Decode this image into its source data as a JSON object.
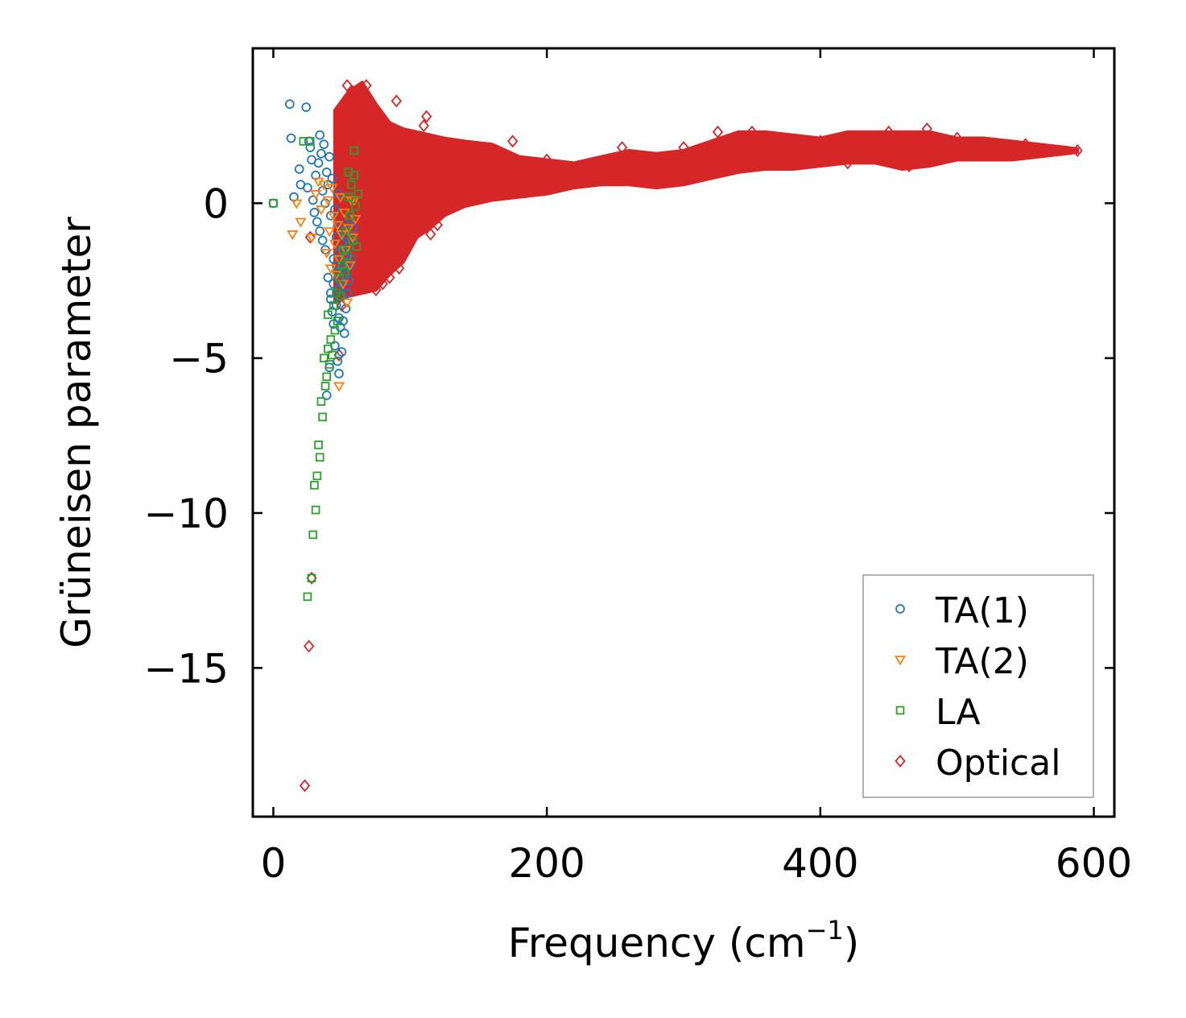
{
  "chart_data": {
    "type": "scatter",
    "xlabel": "Frequency (cm",
    "xlabel_sup": "−1",
    "xlabel_close": ")",
    "ylabel": "Grüneisen parameter",
    "xlim": [
      -15,
      615
    ],
    "ylim": [
      -19.8,
      5.0
    ],
    "x_ticks": [
      0,
      200,
      400,
      600
    ],
    "x_tick_labels": [
      "0",
      "200",
      "400",
      "600"
    ],
    "y_ticks": [
      0,
      -5,
      -10,
      -15
    ],
    "y_tick_labels": [
      "0",
      "−5",
      "−10",
      "−15"
    ],
    "grid": false,
    "legend_position": "bottom-right",
    "series": [
      {
        "name": "TA(1)",
        "marker": "circle",
        "color": "#1f77b4",
        "points": [
          [
            0,
            0
          ],
          [
            12,
            3.2
          ],
          [
            13,
            2.1
          ],
          [
            15,
            0.2
          ],
          [
            19,
            1.1
          ],
          [
            20,
            0.6
          ],
          [
            24,
            3.1
          ],
          [
            25,
            0.5
          ],
          [
            26,
            2.0
          ],
          [
            27,
            1.8
          ],
          [
            28,
            1.4
          ],
          [
            29,
            0.1
          ],
          [
            30,
            -0.3
          ],
          [
            31,
            0.9
          ],
          [
            32,
            -0.6
          ],
          [
            33,
            1.3
          ],
          [
            34,
            2.2
          ],
          [
            34,
            -0.9
          ],
          [
            35,
            1.6
          ],
          [
            36,
            0.4
          ],
          [
            36,
            -1.2
          ],
          [
            37,
            1.9
          ],
          [
            38,
            0.0
          ],
          [
            38,
            -1.5
          ],
          [
            39,
            1.0
          ],
          [
            39,
            -6.2
          ],
          [
            40,
            0.6
          ],
          [
            40,
            -2.4
          ],
          [
            41,
            1.5
          ],
          [
            41,
            -5.3
          ],
          [
            42,
            -0.4
          ],
          [
            42,
            -2.9
          ],
          [
            42,
            -3.1
          ],
          [
            43,
            0.8
          ],
          [
            43,
            -3.5
          ],
          [
            44,
            -1.8
          ],
          [
            44,
            -2.6
          ],
          [
            44,
            -3.9
          ],
          [
            45,
            -0.2
          ],
          [
            45,
            -4.6
          ],
          [
            46,
            -1.1
          ],
          [
            46,
            -2.0
          ],
          [
            46,
            -3.3
          ],
          [
            47,
            0.3
          ],
          [
            47,
            -2.2
          ],
          [
            47,
            -5.1
          ],
          [
            48,
            -1.6
          ],
          [
            48,
            -2.8
          ],
          [
            48,
            -3.7
          ],
          [
            48,
            -5.5
          ],
          [
            49,
            -0.7
          ],
          [
            49,
            -2.5
          ],
          [
            49,
            -4.0
          ],
          [
            50,
            -1.3
          ],
          [
            50,
            -3.0
          ],
          [
            50,
            -4.8
          ],
          [
            51,
            -0.9
          ],
          [
            51,
            -2.1
          ],
          [
            51,
            -3.8
          ],
          [
            52,
            -1.7
          ],
          [
            52,
            -2.7
          ],
          [
            52,
            -4.2
          ],
          [
            53,
            -1.0
          ],
          [
            53,
            -2.3
          ],
          [
            53,
            -3.4
          ],
          [
            54,
            -1.9
          ],
          [
            54,
            -2.9
          ],
          [
            55,
            -1.4
          ],
          [
            55,
            -2.5
          ],
          [
            56,
            -0.5
          ],
          [
            56,
            -2.0
          ],
          [
            57,
            -1.2
          ],
          [
            57,
            -1.8
          ],
          [
            58,
            -0.8
          ]
        ]
      },
      {
        "name": "TA(2)",
        "marker": "triangle-down",
        "color": "#ff7f0e",
        "points": [
          [
            14,
            -1.0
          ],
          [
            17,
            0.0
          ],
          [
            20,
            -0.6
          ],
          [
            28,
            -1.1
          ],
          [
            31,
            0.3
          ],
          [
            33,
            0.7
          ],
          [
            35,
            -0.2
          ],
          [
            37,
            0.6
          ],
          [
            39,
            -1.6
          ],
          [
            40,
            0.1
          ],
          [
            41,
            -0.9
          ],
          [
            42,
            -2.1
          ],
          [
            43,
            0.5
          ],
          [
            44,
            -0.4
          ],
          [
            45,
            -1.3
          ],
          [
            46,
            -2.3
          ],
          [
            47,
            -0.7
          ],
          [
            48,
            -5.9
          ],
          [
            48,
            -1.8
          ],
          [
            49,
            0.2
          ],
          [
            50,
            -1.0
          ],
          [
            51,
            -2.6
          ],
          [
            52,
            -0.3
          ],
          [
            53,
            -1.5
          ],
          [
            54,
            -3.2
          ],
          [
            55,
            -0.8
          ],
          [
            56,
            -2.0
          ],
          [
            57,
            0.1
          ],
          [
            58,
            -1.1
          ],
          [
            59,
            0.1
          ],
          [
            60,
            -0.5
          ]
        ]
      },
      {
        "name": "LA",
        "marker": "square",
        "color": "#2ca02c",
        "points": [
          [
            0,
            0
          ],
          [
            22,
            2.0
          ],
          [
            25,
            -12.7
          ],
          [
            27,
            2.0
          ],
          [
            28,
            -12.1
          ],
          [
            29,
            -10.7
          ],
          [
            30,
            -9.1
          ],
          [
            31,
            -9.9
          ],
          [
            32,
            -8.8
          ],
          [
            33,
            -7.8
          ],
          [
            34,
            -8.2
          ],
          [
            35,
            -6.4
          ],
          [
            36,
            -6.9
          ],
          [
            37,
            -5.0
          ],
          [
            38,
            -5.9
          ],
          [
            39,
            -5.6
          ],
          [
            40,
            -4.7
          ],
          [
            40,
            -3.6
          ],
          [
            41,
            -5.2
          ],
          [
            42,
            -4.4
          ],
          [
            43,
            -4.9
          ],
          [
            44,
            -3.3
          ],
          [
            45,
            -4.1
          ],
          [
            46,
            -2.9
          ],
          [
            47,
            -3.8
          ],
          [
            48,
            -2.4
          ],
          [
            49,
            -3.0
          ],
          [
            50,
            -2.0
          ],
          [
            51,
            -1.5
          ],
          [
            52,
            -2.2
          ],
          [
            53,
            -0.9
          ],
          [
            54,
            -1.7
          ],
          [
            55,
            0.2
          ],
          [
            55,
            1.0
          ],
          [
            56,
            -0.4
          ],
          [
            57,
            0.6
          ],
          [
            58,
            -1.2
          ],
          [
            59,
            1.7
          ],
          [
            59,
            0.9
          ],
          [
            60,
            -0.1
          ],
          [
            61,
            -1.4
          ],
          [
            62,
            0.3
          ]
        ]
      },
      {
        "name": "Optical",
        "marker": "diamond",
        "color": "#d62728",
        "band": [
          [
            45,
            3.0,
            -3.2
          ],
          [
            55,
            3.6,
            -3.0
          ],
          [
            65,
            3.9,
            -2.9
          ],
          [
            75,
            3.2,
            -2.8
          ],
          [
            85,
            2.6,
            -2.3
          ],
          [
            95,
            2.4,
            -1.9
          ],
          [
            105,
            2.3,
            -1.1
          ],
          [
            115,
            2.2,
            -0.8
          ],
          [
            125,
            2.1,
            -0.4
          ],
          [
            140,
            2.0,
            -0.1
          ],
          [
            160,
            1.9,
            0.1
          ],
          [
            180,
            1.5,
            0.2
          ],
          [
            200,
            1.4,
            0.3
          ],
          [
            220,
            1.3,
            0.5
          ],
          [
            240,
            1.5,
            0.6
          ],
          [
            260,
            1.7,
            0.6
          ],
          [
            280,
            1.6,
            0.5
          ],
          [
            300,
            1.7,
            0.6
          ],
          [
            320,
            2.0,
            0.8
          ],
          [
            340,
            2.3,
            1.0
          ],
          [
            360,
            2.3,
            1.1
          ],
          [
            380,
            2.2,
            1.1
          ],
          [
            400,
            2.1,
            1.2
          ],
          [
            420,
            2.3,
            1.3
          ],
          [
            440,
            2.3,
            1.3
          ],
          [
            460,
            2.3,
            1.1
          ],
          [
            480,
            2.3,
            1.2
          ],
          [
            500,
            2.1,
            1.4
          ],
          [
            520,
            2.1,
            1.4
          ],
          [
            540,
            2.0,
            1.4
          ],
          [
            560,
            1.9,
            1.5
          ],
          [
            580,
            1.8,
            1.6
          ],
          [
            588,
            1.75,
            1.65
          ]
        ],
        "points": [
          [
            23,
            -18.8
          ],
          [
            26,
            -14.3
          ],
          [
            28,
            -12.1
          ],
          [
            27,
            -1.1
          ],
          [
            48,
            -4.9
          ],
          [
            50,
            -3.3
          ],
          [
            54,
            3.8
          ],
          [
            58,
            3.6
          ],
          [
            68,
            3.8
          ],
          [
            75,
            -2.8
          ],
          [
            80,
            -2.6
          ],
          [
            85,
            -2.4
          ],
          [
            90,
            3.3
          ],
          [
            92,
            -2.1
          ],
          [
            100,
            -1.2
          ],
          [
            110,
            2.5
          ],
          [
            112,
            2.8
          ],
          [
            115,
            -1.0
          ],
          [
            120,
            -0.7
          ],
          [
            135,
            1.8
          ],
          [
            150,
            1.5
          ],
          [
            175,
            2.0
          ],
          [
            200,
            1.4
          ],
          [
            225,
            0.7
          ],
          [
            255,
            1.8
          ],
          [
            300,
            1.8
          ],
          [
            325,
            2.3
          ],
          [
            350,
            2.3
          ],
          [
            400,
            2.0
          ],
          [
            420,
            1.3
          ],
          [
            450,
            2.3
          ],
          [
            465,
            1.2
          ],
          [
            478,
            2.4
          ],
          [
            500,
            2.1
          ],
          [
            550,
            1.9
          ],
          [
            588,
            1.7
          ]
        ]
      }
    ]
  }
}
